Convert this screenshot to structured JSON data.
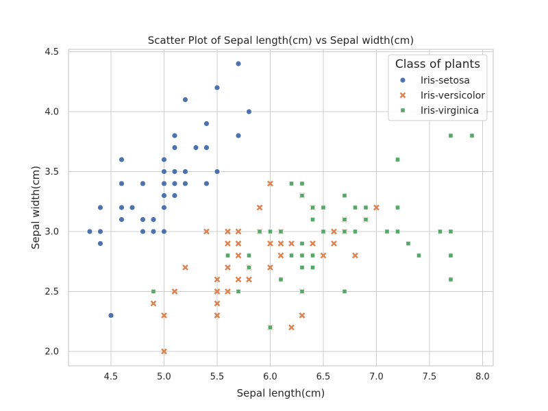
{
  "chart_data": {
    "type": "scatter",
    "title": "Scatter Plot of Sepal length(cm) vs Sepal width(cm)",
    "xlabel": "Sepal length(cm)",
    "ylabel": "Sepal width(cm)",
    "xlim": [
      4.1,
      8.1
    ],
    "ylim": [
      1.88,
      4.52
    ],
    "xticks": [
      4.5,
      5.0,
      5.5,
      6.0,
      6.5,
      7.0,
      7.5,
      8.0
    ],
    "xtick_labels": [
      "4.5",
      "5.0",
      "5.5",
      "6.0",
      "6.5",
      "7.0",
      "7.5",
      "8.0"
    ],
    "yticks": [
      2.0,
      2.5,
      3.0,
      3.5,
      4.0,
      4.5
    ],
    "ytick_labels": [
      "2.0",
      "2.5",
      "3.0",
      "3.5",
      "4.0",
      "4.5"
    ],
    "grid": true,
    "legend": {
      "title": "Class of plants",
      "placement": "top-right"
    },
    "series": [
      {
        "name": "Iris-setosa",
        "color": "#4c72b0",
        "marker": "circle",
        "points": [
          [
            4.3,
            3.0
          ],
          [
            4.4,
            3.2
          ],
          [
            4.4,
            3.0
          ],
          [
            4.4,
            2.9
          ],
          [
            4.5,
            2.3
          ],
          [
            4.6,
            3.6
          ],
          [
            4.6,
            3.4
          ],
          [
            4.6,
            3.2
          ],
          [
            4.6,
            3.1
          ],
          [
            4.7,
            3.2
          ],
          [
            4.8,
            3.4
          ],
          [
            4.8,
            3.1
          ],
          [
            4.8,
            3.0
          ],
          [
            4.9,
            3.1
          ],
          [
            4.9,
            3.0
          ],
          [
            5.0,
            3.6
          ],
          [
            5.0,
            3.5
          ],
          [
            5.0,
            3.4
          ],
          [
            5.0,
            3.3
          ],
          [
            5.0,
            3.2
          ],
          [
            5.0,
            3.0
          ],
          [
            5.1,
            3.8
          ],
          [
            5.1,
            3.7
          ],
          [
            5.1,
            3.5
          ],
          [
            5.1,
            3.4
          ],
          [
            5.1,
            3.3
          ],
          [
            5.2,
            4.1
          ],
          [
            5.2,
            3.5
          ],
          [
            5.2,
            3.4
          ],
          [
            5.3,
            3.7
          ],
          [
            5.4,
            3.9
          ],
          [
            5.4,
            3.7
          ],
          [
            5.4,
            3.4
          ],
          [
            5.5,
            4.2
          ],
          [
            5.5,
            3.5
          ],
          [
            5.7,
            4.4
          ],
          [
            5.7,
            3.8
          ],
          [
            5.8,
            4.0
          ]
        ]
      },
      {
        "name": "Iris-versicolor",
        "color": "#dd8452",
        "marker": "x",
        "points": [
          [
            4.9,
            2.4
          ],
          [
            5.0,
            2.3
          ],
          [
            5.0,
            2.0
          ],
          [
            5.1,
            2.5
          ],
          [
            5.2,
            2.7
          ],
          [
            5.4,
            3.0
          ],
          [
            5.5,
            2.6
          ],
          [
            5.5,
            2.5
          ],
          [
            5.5,
            2.4
          ],
          [
            5.5,
            2.3
          ],
          [
            5.6,
            3.0
          ],
          [
            5.6,
            2.9
          ],
          [
            5.6,
            2.7
          ],
          [
            5.6,
            2.5
          ],
          [
            5.7,
            3.0
          ],
          [
            5.7,
            2.9
          ],
          [
            5.7,
            2.8
          ],
          [
            5.7,
            2.6
          ],
          [
            5.8,
            2.7
          ],
          [
            5.8,
            2.6
          ],
          [
            5.9,
            3.2
          ],
          [
            5.9,
            3.0
          ],
          [
            6.0,
            3.4
          ],
          [
            6.0,
            2.9
          ],
          [
            6.0,
            2.7
          ],
          [
            6.0,
            2.2
          ],
          [
            6.1,
            3.0
          ],
          [
            6.1,
            2.9
          ],
          [
            6.1,
            2.8
          ],
          [
            6.2,
            2.9
          ],
          [
            6.2,
            2.2
          ],
          [
            6.3,
            3.3
          ],
          [
            6.3,
            2.5
          ],
          [
            6.3,
            2.3
          ],
          [
            6.4,
            3.2
          ],
          [
            6.4,
            2.9
          ],
          [
            6.5,
            2.8
          ],
          [
            6.6,
            3.0
          ],
          [
            6.6,
            2.9
          ],
          [
            6.7,
            3.1
          ],
          [
            6.7,
            3.0
          ],
          [
            6.8,
            2.8
          ],
          [
            6.9,
            3.1
          ],
          [
            7.0,
            3.2
          ]
        ]
      },
      {
        "name": "Iris-virginica",
        "color": "#55a868",
        "marker": "square",
        "points": [
          [
            4.9,
            2.5
          ],
          [
            5.6,
            2.8
          ],
          [
            5.7,
            2.5
          ],
          [
            5.8,
            2.8
          ],
          [
            5.8,
            2.7
          ],
          [
            5.9,
            3.0
          ],
          [
            6.0,
            3.0
          ],
          [
            6.0,
            2.2
          ],
          [
            6.1,
            3.0
          ],
          [
            6.1,
            2.6
          ],
          [
            6.2,
            3.4
          ],
          [
            6.2,
            2.8
          ],
          [
            6.3,
            3.4
          ],
          [
            6.3,
            3.3
          ],
          [
            6.3,
            2.9
          ],
          [
            6.3,
            2.8
          ],
          [
            6.3,
            2.7
          ],
          [
            6.3,
            2.5
          ],
          [
            6.4,
            3.2
          ],
          [
            6.4,
            3.1
          ],
          [
            6.4,
            2.8
          ],
          [
            6.4,
            2.7
          ],
          [
            6.5,
            3.2
          ],
          [
            6.5,
            3.0
          ],
          [
            6.7,
            3.3
          ],
          [
            6.7,
            3.1
          ],
          [
            6.7,
            3.0
          ],
          [
            6.7,
            2.5
          ],
          [
            6.8,
            3.2
          ],
          [
            6.8,
            3.0
          ],
          [
            6.9,
            3.2
          ],
          [
            6.9,
            3.1
          ],
          [
            7.1,
            3.0
          ],
          [
            7.2,
            3.6
          ],
          [
            7.2,
            3.2
          ],
          [
            7.2,
            3.0
          ],
          [
            7.3,
            2.9
          ],
          [
            7.4,
            2.8
          ],
          [
            7.6,
            3.0
          ],
          [
            7.7,
            3.8
          ],
          [
            7.7,
            3.0
          ],
          [
            7.7,
            2.8
          ],
          [
            7.7,
            2.6
          ],
          [
            7.9,
            3.8
          ]
        ]
      }
    ]
  }
}
